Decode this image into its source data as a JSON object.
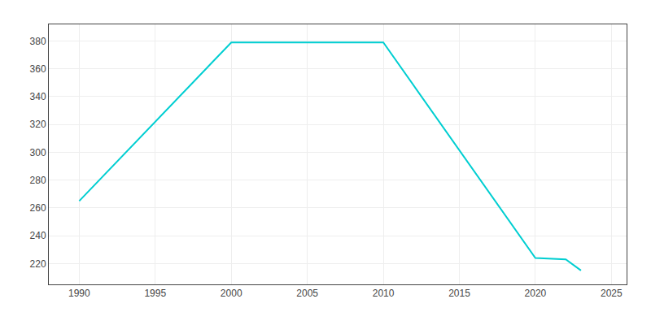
{
  "chart_data": {
    "type": "line",
    "x": [
      1990,
      2000,
      2010,
      2020,
      2022,
      2023
    ],
    "values": [
      265,
      379,
      379,
      224,
      223,
      215
    ],
    "color": "#00CED1",
    "xlim": [
      1988,
      2026
    ],
    "ylim": [
      205,
      392
    ],
    "xticks": [
      1990,
      1995,
      2000,
      2005,
      2010,
      2015,
      2020,
      2025
    ],
    "yticks": [
      220,
      240,
      260,
      280,
      300,
      320,
      340,
      360,
      380
    ],
    "grid": true
  }
}
